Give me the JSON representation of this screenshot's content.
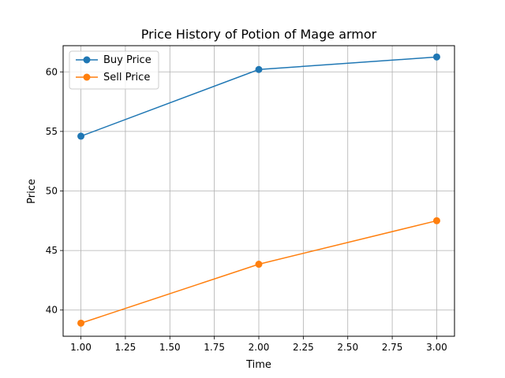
{
  "chart_data": {
    "type": "line",
    "title": "Price History of Potion of Mage armor",
    "xlabel": "Time",
    "ylabel": "Price",
    "xlim": [
      0.9,
      3.1
    ],
    "ylim": [
      37.8,
      62.2
    ],
    "xticks": [
      1.0,
      1.25,
      1.5,
      1.75,
      2.0,
      2.25,
      2.5,
      2.75,
      3.0
    ],
    "xtick_labels": [
      "1.00",
      "1.25",
      "1.50",
      "1.75",
      "2.00",
      "2.25",
      "2.50",
      "2.75",
      "3.00"
    ],
    "yticks": [
      40,
      45,
      50,
      55,
      60
    ],
    "ytick_labels": [
      "40",
      "45",
      "50",
      "55",
      "60"
    ],
    "grid": true,
    "legend_position": "top-left",
    "x": [
      1,
      2,
      3
    ],
    "series": [
      {
        "name": "Buy Price",
        "color": "#1f77b4",
        "values": [
          54.6,
          60.2,
          61.25
        ]
      },
      {
        "name": "Sell Price",
        "color": "#ff7f0e",
        "values": [
          38.9,
          43.85,
          47.5
        ]
      }
    ]
  }
}
